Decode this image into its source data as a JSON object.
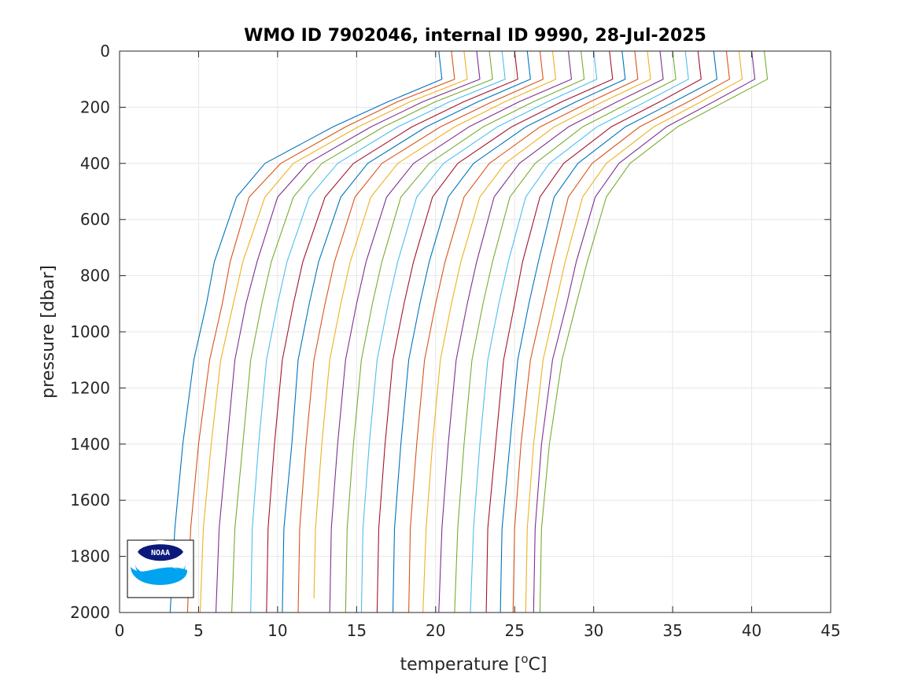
{
  "chart_data": {
    "type": "line",
    "title": "WMO ID 7902046, internal ID 9990, 28-Jul-2025",
    "xlabel_prefix": "temperature [",
    "xlabel_sup": "o",
    "xlabel_suffix": "C]",
    "ylabel": "pressure [dbar]",
    "xlim": [
      0,
      45
    ],
    "ylim": [
      0,
      2000
    ],
    "y_reversed": true,
    "grid": true,
    "xticks": [
      "0",
      "5",
      "10",
      "15",
      "20",
      "25",
      "30",
      "35",
      "40",
      "45"
    ],
    "yticks": [
      "0",
      "200",
      "400",
      "600",
      "800",
      "1000",
      "1200",
      "1400",
      "1600",
      "1800",
      "2000"
    ],
    "logo": "noaa-logo",
    "series_colors": [
      "#0072BD",
      "#D95319",
      "#EDB120",
      "#7E2F8E",
      "#77AC30",
      "#4DBEEE",
      "#A2142F"
    ],
    "series": [
      {
        "x": [
          20.2,
          20.4,
          17.0,
          13.5,
          9.2,
          7.4,
          6.0,
          5.5,
          4.7,
          4.0,
          3.5,
          3.2
        ],
        "y": [
          0,
          100,
          180,
          270,
          400,
          520,
          750,
          900,
          1100,
          1400,
          1700,
          2000
        ]
      },
      {
        "x": [
          21.0,
          21.2,
          17.6,
          14.3,
          10.2,
          8.2,
          7.0,
          6.5,
          5.7,
          5.0,
          4.5,
          4.3
        ],
        "y": [
          0,
          100,
          180,
          270,
          400,
          520,
          750,
          900,
          1100,
          1400,
          1700,
          2000
        ]
      },
      {
        "x": [
          21.8,
          22.0,
          18.4,
          15.1,
          11.0,
          9.2,
          7.8,
          7.2,
          6.4,
          5.8,
          5.3,
          5.1
        ],
        "y": [
          0,
          100,
          180,
          270,
          400,
          520,
          750,
          900,
          1100,
          1400,
          1700,
          2000
        ]
      },
      {
        "x": [
          22.6,
          22.8,
          19.2,
          15.9,
          11.9,
          10.0,
          8.7,
          8.0,
          7.3,
          6.8,
          6.3,
          6.1
        ],
        "y": [
          0,
          100,
          180,
          270,
          400,
          520,
          750,
          900,
          1100,
          1400,
          1700,
          2000
        ]
      },
      {
        "x": [
          23.4,
          23.6,
          20.0,
          16.7,
          12.8,
          11.0,
          9.6,
          9.0,
          8.3,
          7.8,
          7.3,
          7.1
        ],
        "y": [
          0,
          100,
          180,
          270,
          400,
          520,
          750,
          900,
          1100,
          1400,
          1700,
          2000
        ]
      },
      {
        "x": [
          24.2,
          24.4,
          20.9,
          17.6,
          13.8,
          12.0,
          10.6,
          10.0,
          9.3,
          8.8,
          8.4,
          8.3
        ],
        "y": [
          0,
          100,
          180,
          270,
          400,
          520,
          750,
          900,
          1100,
          1400,
          1700,
          2000
        ]
      },
      {
        "x": [
          25.0,
          25.2,
          21.8,
          18.5,
          14.8,
          13.0,
          11.6,
          11.0,
          10.3,
          9.8,
          9.4,
          9.3
        ],
        "y": [
          0,
          100,
          180,
          270,
          400,
          520,
          750,
          900,
          1100,
          1400,
          1700,
          2000
        ]
      },
      {
        "x": [
          25.8,
          26.0,
          22.7,
          19.4,
          15.7,
          14.0,
          12.6,
          12.0,
          11.3,
          10.9,
          10.4,
          10.3
        ],
        "y": [
          0,
          100,
          180,
          270,
          400,
          520,
          750,
          900,
          1100,
          1400,
          1700,
          2000
        ]
      },
      {
        "x": [
          26.6,
          26.8,
          23.6,
          20.3,
          16.6,
          14.9,
          13.6,
          13.0,
          12.3,
          11.8,
          11.4,
          11.3
        ],
        "y": [
          0,
          100,
          180,
          270,
          400,
          520,
          750,
          900,
          1100,
          1400,
          1700,
          2000
        ]
      },
      {
        "x": [
          27.4,
          27.6,
          24.4,
          21.2,
          17.6,
          15.9,
          14.6,
          14.0,
          13.3,
          12.8,
          12.4,
          12.3
        ],
        "y": [
          0,
          100,
          180,
          270,
          400,
          520,
          750,
          900,
          1100,
          1400,
          1700,
          1950
        ]
      },
      {
        "x": [
          28.4,
          28.6,
          25.3,
          22.1,
          18.6,
          16.9,
          15.6,
          15.0,
          14.3,
          13.8,
          13.4,
          13.3
        ],
        "y": [
          0,
          100,
          180,
          270,
          400,
          520,
          750,
          900,
          1100,
          1400,
          1700,
          2000
        ]
      },
      {
        "x": [
          29.2,
          29.4,
          26.2,
          23.0,
          19.6,
          17.8,
          16.6,
          16.0,
          15.3,
          14.8,
          14.4,
          14.3
        ],
        "y": [
          0,
          100,
          180,
          270,
          400,
          520,
          750,
          900,
          1100,
          1400,
          1700,
          2000
        ]
      },
      {
        "x": [
          30.0,
          30.2,
          27.1,
          23.9,
          20.5,
          18.8,
          17.6,
          17.0,
          16.3,
          15.8,
          15.4,
          15.3
        ],
        "y": [
          0,
          100,
          180,
          270,
          400,
          520,
          750,
          900,
          1100,
          1400,
          1700,
          2000
        ]
      },
      {
        "x": [
          31.0,
          31.2,
          28.0,
          24.8,
          21.4,
          19.8,
          18.6,
          18.0,
          17.3,
          16.8,
          16.4,
          16.3
        ],
        "y": [
          0,
          100,
          180,
          270,
          400,
          520,
          750,
          900,
          1100,
          1400,
          1700,
          2000
        ]
      },
      {
        "x": [
          31.8,
          32.0,
          28.9,
          25.7,
          22.4,
          20.8,
          19.6,
          19.0,
          18.3,
          17.8,
          17.4,
          17.3
        ],
        "y": [
          0,
          100,
          180,
          270,
          400,
          520,
          750,
          900,
          1100,
          1400,
          1700,
          2000
        ]
      },
      {
        "x": [
          32.6,
          32.8,
          29.8,
          26.6,
          23.4,
          21.8,
          20.6,
          20.0,
          19.3,
          18.8,
          18.4,
          18.3
        ],
        "y": [
          0,
          100,
          180,
          270,
          400,
          520,
          750,
          900,
          1100,
          1400,
          1700,
          2000
        ]
      },
      {
        "x": [
          33.4,
          33.6,
          30.6,
          27.5,
          24.4,
          22.8,
          21.6,
          21.0,
          20.3,
          19.8,
          19.4,
          19.2
        ],
        "y": [
          0,
          100,
          180,
          270,
          400,
          520,
          750,
          900,
          1100,
          1400,
          1700,
          2000
        ]
      },
      {
        "x": [
          34.2,
          34.4,
          31.5,
          28.4,
          25.3,
          23.7,
          22.6,
          22.0,
          21.3,
          20.8,
          20.4,
          20.2
        ],
        "y": [
          0,
          100,
          180,
          270,
          400,
          520,
          750,
          900,
          1100,
          1400,
          1700,
          2000
        ]
      },
      {
        "x": [
          35.0,
          35.2,
          32.4,
          29.3,
          26.3,
          24.7,
          23.6,
          23.0,
          22.3,
          21.8,
          21.4,
          21.2
        ],
        "y": [
          0,
          100,
          180,
          270,
          400,
          520,
          750,
          900,
          1100,
          1400,
          1700,
          2000
        ]
      },
      {
        "x": [
          35.8,
          36.0,
          33.3,
          30.2,
          27.2,
          25.7,
          24.6,
          24.0,
          23.3,
          22.8,
          22.4,
          22.2
        ],
        "y": [
          0,
          100,
          180,
          270,
          400,
          520,
          750,
          900,
          1100,
          1400,
          1700,
          2000
        ]
      },
      {
        "x": [
          36.6,
          36.8,
          34.2,
          31.1,
          28.1,
          26.6,
          25.5,
          25.0,
          24.3,
          23.8,
          23.3,
          23.2
        ],
        "y": [
          0,
          100,
          180,
          270,
          400,
          520,
          750,
          900,
          1100,
          1400,
          1700,
          2000
        ]
      },
      {
        "x": [
          37.6,
          37.8,
          35.1,
          32.0,
          29.0,
          27.5,
          26.5,
          25.9,
          25.2,
          24.7,
          24.2,
          24.1
        ],
        "y": [
          0,
          100,
          180,
          270,
          400,
          520,
          750,
          900,
          1100,
          1400,
          1700,
          2000
        ]
      },
      {
        "x": [
          38.4,
          38.6,
          36.0,
          32.9,
          29.9,
          28.4,
          27.4,
          26.8,
          26.0,
          25.4,
          25.0,
          24.9
        ],
        "y": [
          0,
          100,
          180,
          270,
          400,
          520,
          750,
          900,
          1100,
          1400,
          1700,
          2000
        ]
      },
      {
        "x": [
          39.2,
          39.4,
          36.8,
          33.8,
          30.8,
          29.3,
          28.2,
          27.6,
          26.8,
          26.2,
          25.8,
          25.7
        ],
        "y": [
          0,
          100,
          180,
          270,
          400,
          520,
          750,
          900,
          1100,
          1400,
          1700,
          2000
        ]
      },
      {
        "x": [
          40.0,
          40.2,
          37.6,
          34.6,
          31.6,
          30.1,
          28.9,
          28.3,
          27.4,
          26.7,
          26.3,
          26.2
        ],
        "y": [
          0,
          100,
          180,
          270,
          400,
          520,
          750,
          900,
          1100,
          1400,
          1700,
          2000
        ]
      },
      {
        "x": [
          40.8,
          41.0,
          38.3,
          35.3,
          32.3,
          30.8,
          29.6,
          28.9,
          28.0,
          27.2,
          26.7,
          26.6
        ],
        "y": [
          0,
          100,
          180,
          270,
          400,
          520,
          750,
          900,
          1100,
          1400,
          1700,
          2000
        ]
      }
    ]
  }
}
